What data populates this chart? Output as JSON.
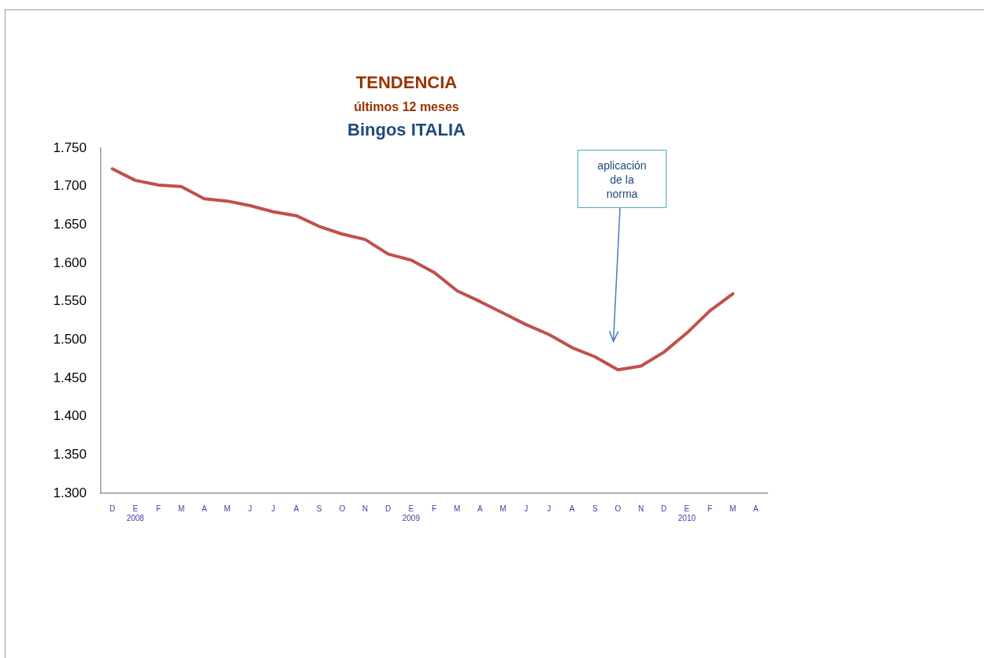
{
  "chart_data": {
    "type": "line",
    "title": "TENDENCIA",
    "subtitle": "últimos 12 meses\nBingos ITALIA",
    "categories": [
      "D",
      "E\n2008",
      "F",
      "M",
      "A",
      "M",
      "J",
      "J",
      "A",
      "S",
      "O",
      "N",
      "D",
      "E\n2009",
      "F",
      "M",
      "A",
      "M",
      "J",
      "J",
      "A",
      "S",
      "O",
      "N",
      "D",
      "E\n2010",
      "F",
      "M",
      "A"
    ],
    "series": [
      {
        "color": "#c0504d",
        "values": [
          1.723,
          1.708,
          1.702,
          1.7,
          1.684,
          1.681,
          1.675,
          1.667,
          1.662,
          1.648,
          1.638,
          1.631,
          1.612,
          1.604,
          1.588,
          1.564,
          1.55,
          1.535,
          1.52,
          1.507,
          1.49,
          1.478,
          1.461,
          1.466,
          1.484,
          1.509,
          1.538,
          1.56,
          null
        ]
      }
    ],
    "ylim": [
      1.3,
      1.75
    ],
    "yticks": [
      {
        "value": 1.3,
        "label": "1.300"
      },
      {
        "value": 1.35,
        "label": "1.350"
      },
      {
        "value": 1.4,
        "label": "1.400"
      },
      {
        "value": 1.45,
        "label": "1.450"
      },
      {
        "value": 1.5,
        "label": "1.500"
      },
      {
        "value": 1.55,
        "label": "1.550"
      },
      {
        "value": 1.6,
        "label": "1.600"
      },
      {
        "value": 1.65,
        "label": "1.650"
      },
      {
        "value": 1.7,
        "label": "1.700"
      },
      {
        "value": 1.75,
        "label": "1.750"
      }
    ],
    "grid": false,
    "legend": false,
    "marker": "none",
    "line_style": "solid",
    "annotations": [
      "aplicación\nde la\nnorma"
    ]
  }
}
